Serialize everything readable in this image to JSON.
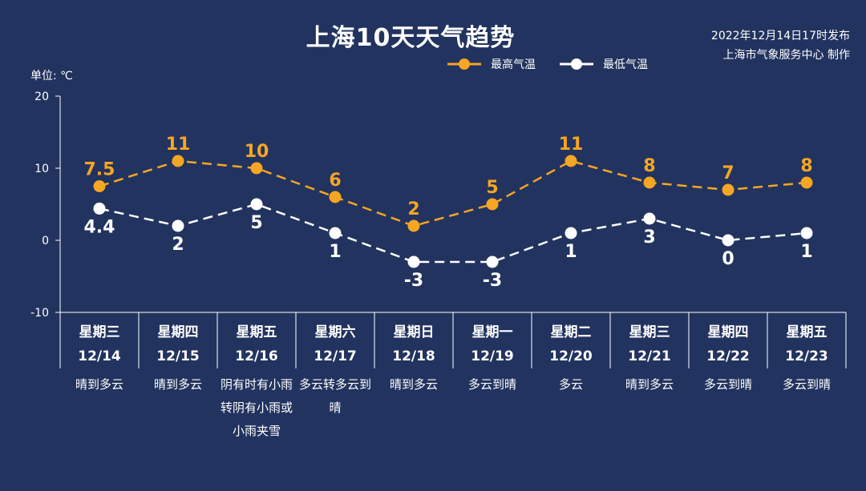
{
  "header": {
    "title": "上海10天天气趋势",
    "issued": "2022年12月14日17时发布",
    "producer": "上海市气象服务中心 制作",
    "unit": "单位: ℃"
  },
  "colors": {
    "background": "#22335f",
    "high": "#f5a623",
    "low": "#ffffff"
  },
  "days": [
    {
      "name": "星期三",
      "date": "12/14",
      "weather": "晴到多云"
    },
    {
      "name": "星期四",
      "date": "12/15",
      "weather": "晴到多云"
    },
    {
      "name": "星期五",
      "date": "12/16",
      "weather": "阴有时有小雨转阴有小雨或小雨夹雪"
    },
    {
      "name": "星期六",
      "date": "12/17",
      "weather": "多云转多云到晴"
    },
    {
      "name": "星期日",
      "date": "12/18",
      "weather": "晴到多云"
    },
    {
      "name": "星期一",
      "date": "12/19",
      "weather": "多云到晴"
    },
    {
      "name": "星期二",
      "date": "12/20",
      "weather": "多云"
    },
    {
      "name": "星期三",
      "date": "12/21",
      "weather": "晴到多云"
    },
    {
      "name": "星期四",
      "date": "12/22",
      "weather": "多云到晴"
    },
    {
      "name": "星期五",
      "date": "12/23",
      "weather": "多云到晴"
    }
  ],
  "chart_data": {
    "type": "line",
    "title": "上海10天天气趋势",
    "ylabel": "单位: ℃",
    "ylim": [
      -10,
      20
    ],
    "yticks": [
      "20",
      "10",
      "0",
      "-10"
    ],
    "legend_position": "top-center",
    "categories": [
      "12/14",
      "12/15",
      "12/16",
      "12/17",
      "12/18",
      "12/19",
      "12/20",
      "12/21",
      "12/22",
      "12/23"
    ],
    "series": [
      {
        "name": "最高气温",
        "values": [
          7.5,
          11,
          10,
          6,
          2,
          5,
          11,
          8,
          7,
          8
        ],
        "labels": [
          "7.5",
          "11",
          "10",
          "6",
          "2",
          "5",
          "11",
          "8",
          "7",
          "8"
        ],
        "color": "#f5a623",
        "style": "dashed"
      },
      {
        "name": "最低气温",
        "values": [
          4.4,
          2,
          5,
          1,
          -3,
          -3,
          1,
          3,
          0,
          1
        ],
        "labels": [
          "4.4",
          "2",
          "5",
          "1",
          "-3",
          "-3",
          "1",
          "3",
          "0",
          "1"
        ],
        "color": "#ffffff",
        "style": "dashed"
      }
    ]
  }
}
